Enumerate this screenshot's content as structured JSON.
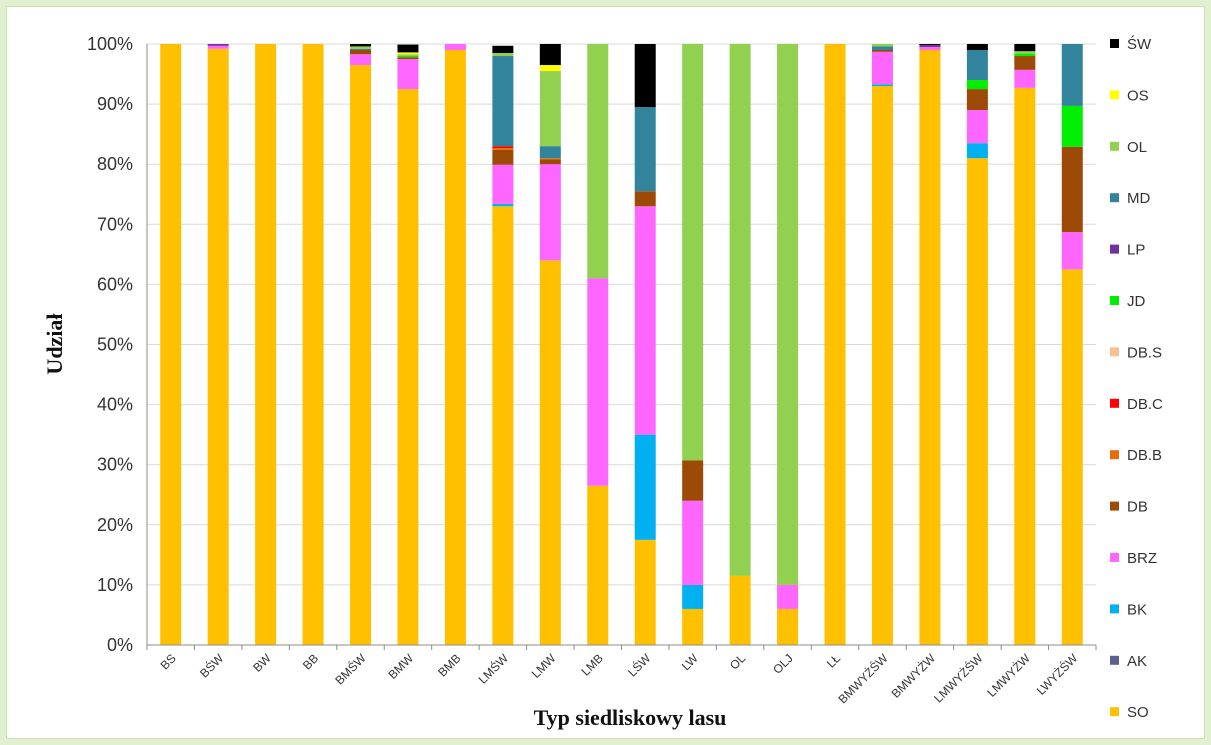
{
  "chart_data": {
    "type": "bar",
    "stacked": true,
    "xlabel": "Typ siedliskowy lasu",
    "ylabel": "Udział",
    "ylim": [
      0,
      100
    ],
    "yticks": [
      "0%",
      "10%",
      "20%",
      "30%",
      "40%",
      "50%",
      "60%",
      "70%",
      "80%",
      "90%",
      "100%"
    ],
    "legend_position": "right",
    "grid": "horizontal",
    "categories": [
      "BS",
      "BŚW",
      "BW",
      "BB",
      "BMŚW",
      "BMW",
      "BMB",
      "LMŚW",
      "LMW",
      "LMB",
      "LŚW",
      "LW",
      "OL",
      "OLJ",
      "LŁ",
      "BMWYŻŚW",
      "BMWYŻW",
      "LMWYŻŚW",
      "LMWYŻW",
      "LWYŻŚW"
    ],
    "series": [
      {
        "name": "SO",
        "color": "#FFC000",
        "values": [
          100,
          99.2,
          100,
          100,
          96.5,
          92.5,
          99,
          73,
          64,
          26.5,
          17.5,
          6,
          11.5,
          6,
          100,
          93,
          99,
          81,
          92.7,
          62.5
        ]
      },
      {
        "name": "AK",
        "color": "#5B5E8F",
        "values": [
          0,
          0,
          0,
          0,
          0,
          0,
          0,
          0,
          0,
          0,
          0,
          0,
          0,
          0,
          0,
          0,
          0,
          0,
          0,
          0
        ]
      },
      {
        "name": "BK",
        "color": "#00B0F0",
        "values": [
          0,
          0,
          0,
          0,
          0,
          0,
          0,
          0.4,
          0,
          0,
          17.5,
          4,
          0,
          0,
          0,
          0.3,
          0,
          2.5,
          0,
          0
        ]
      },
      {
        "name": "BRZ",
        "color": "#FF66FF",
        "values": [
          0,
          0.5,
          0,
          0,
          1.8,
          5,
          1,
          6.5,
          16,
          34.5,
          38,
          14,
          0,
          4,
          0,
          5.4,
          0.5,
          5.5,
          3,
          6.2
        ]
      },
      {
        "name": "DB",
        "color": "#9C4A06",
        "values": [
          0,
          0,
          0,
          0,
          0.7,
          0.3,
          0,
          2.5,
          0.8,
          0,
          2.5,
          6.7,
          0,
          0,
          0,
          0.3,
          0,
          3.5,
          2.3,
          14.2
        ]
      },
      {
        "name": "DB.B",
        "color": "#E46C0A",
        "values": [
          0,
          0,
          0,
          0,
          0,
          0,
          0,
          0.3,
          0.2,
          0,
          0,
          0,
          0,
          0,
          0,
          0,
          0,
          0,
          0,
          0
        ]
      },
      {
        "name": "DB.C",
        "color": "#FF0000",
        "values": [
          0,
          0,
          0,
          0,
          0,
          0,
          0,
          0.3,
          0,
          0,
          0,
          0,
          0,
          0,
          0,
          0,
          0,
          0,
          0,
          0
        ]
      },
      {
        "name": "DB.S",
        "color": "#FAC090",
        "values": [
          0,
          0,
          0,
          0,
          0,
          0,
          0,
          0,
          0,
          0,
          0,
          0,
          0,
          0,
          0,
          0,
          0,
          0,
          0,
          0
        ]
      },
      {
        "name": "JD",
        "color": "#00EE00",
        "values": [
          0,
          0,
          0,
          0,
          0,
          0.2,
          0,
          0,
          0,
          0,
          0,
          0,
          0,
          0,
          0,
          0,
          0,
          1.5,
          0.4,
          6.8
        ]
      },
      {
        "name": "LP",
        "color": "#7030A0",
        "values": [
          0,
          0.3,
          0,
          0,
          0,
          0,
          0,
          0,
          0,
          0,
          0,
          0,
          0,
          0,
          0,
          0,
          0.3,
          0,
          0,
          0
        ]
      },
      {
        "name": "MD",
        "color": "#31849B",
        "values": [
          0,
          0,
          0,
          0,
          0.2,
          0,
          0,
          15,
          2,
          0,
          14,
          0,
          0,
          0,
          0,
          0.6,
          0,
          5,
          0,
          10.3
        ]
      },
      {
        "name": "OL",
        "color": "#92D050",
        "values": [
          0,
          0,
          0,
          0,
          0.4,
          0.3,
          0,
          0.5,
          12.5,
          39,
          0,
          69.3,
          88.5,
          90,
          0,
          0.4,
          0,
          0,
          0.4,
          0
        ]
      },
      {
        "name": "OS",
        "color": "#FFFF00",
        "values": [
          0,
          0,
          0,
          0,
          0,
          0.3,
          0,
          0,
          1,
          0,
          0,
          0,
          0,
          0,
          0,
          0,
          0,
          0,
          0,
          0
        ]
      },
      {
        "name": "ŚW",
        "color": "#000000",
        "values": [
          0,
          0,
          0,
          0,
          0.4,
          1.3,
          0,
          1.2,
          3.5,
          0,
          10.5,
          0,
          0,
          0,
          0,
          0,
          0.2,
          1,
          1.2,
          0
        ]
      }
    ]
  }
}
